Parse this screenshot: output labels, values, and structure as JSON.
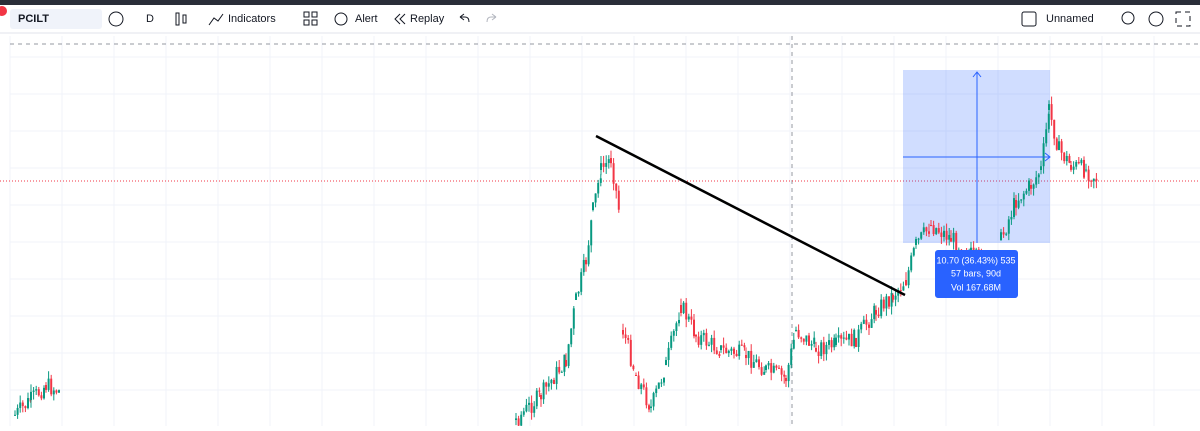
{
  "toolbar": {
    "symbol": "PCILT",
    "interval": "D",
    "indicators": "Indicators",
    "alert": "Alert",
    "replay": "Replay",
    "layout": "Unnamed"
  },
  "measure": {
    "line1": "10.70 (36.43%) 535",
    "line2": "57 bars, 90d",
    "line3": "Vol 167.68M"
  }
}
